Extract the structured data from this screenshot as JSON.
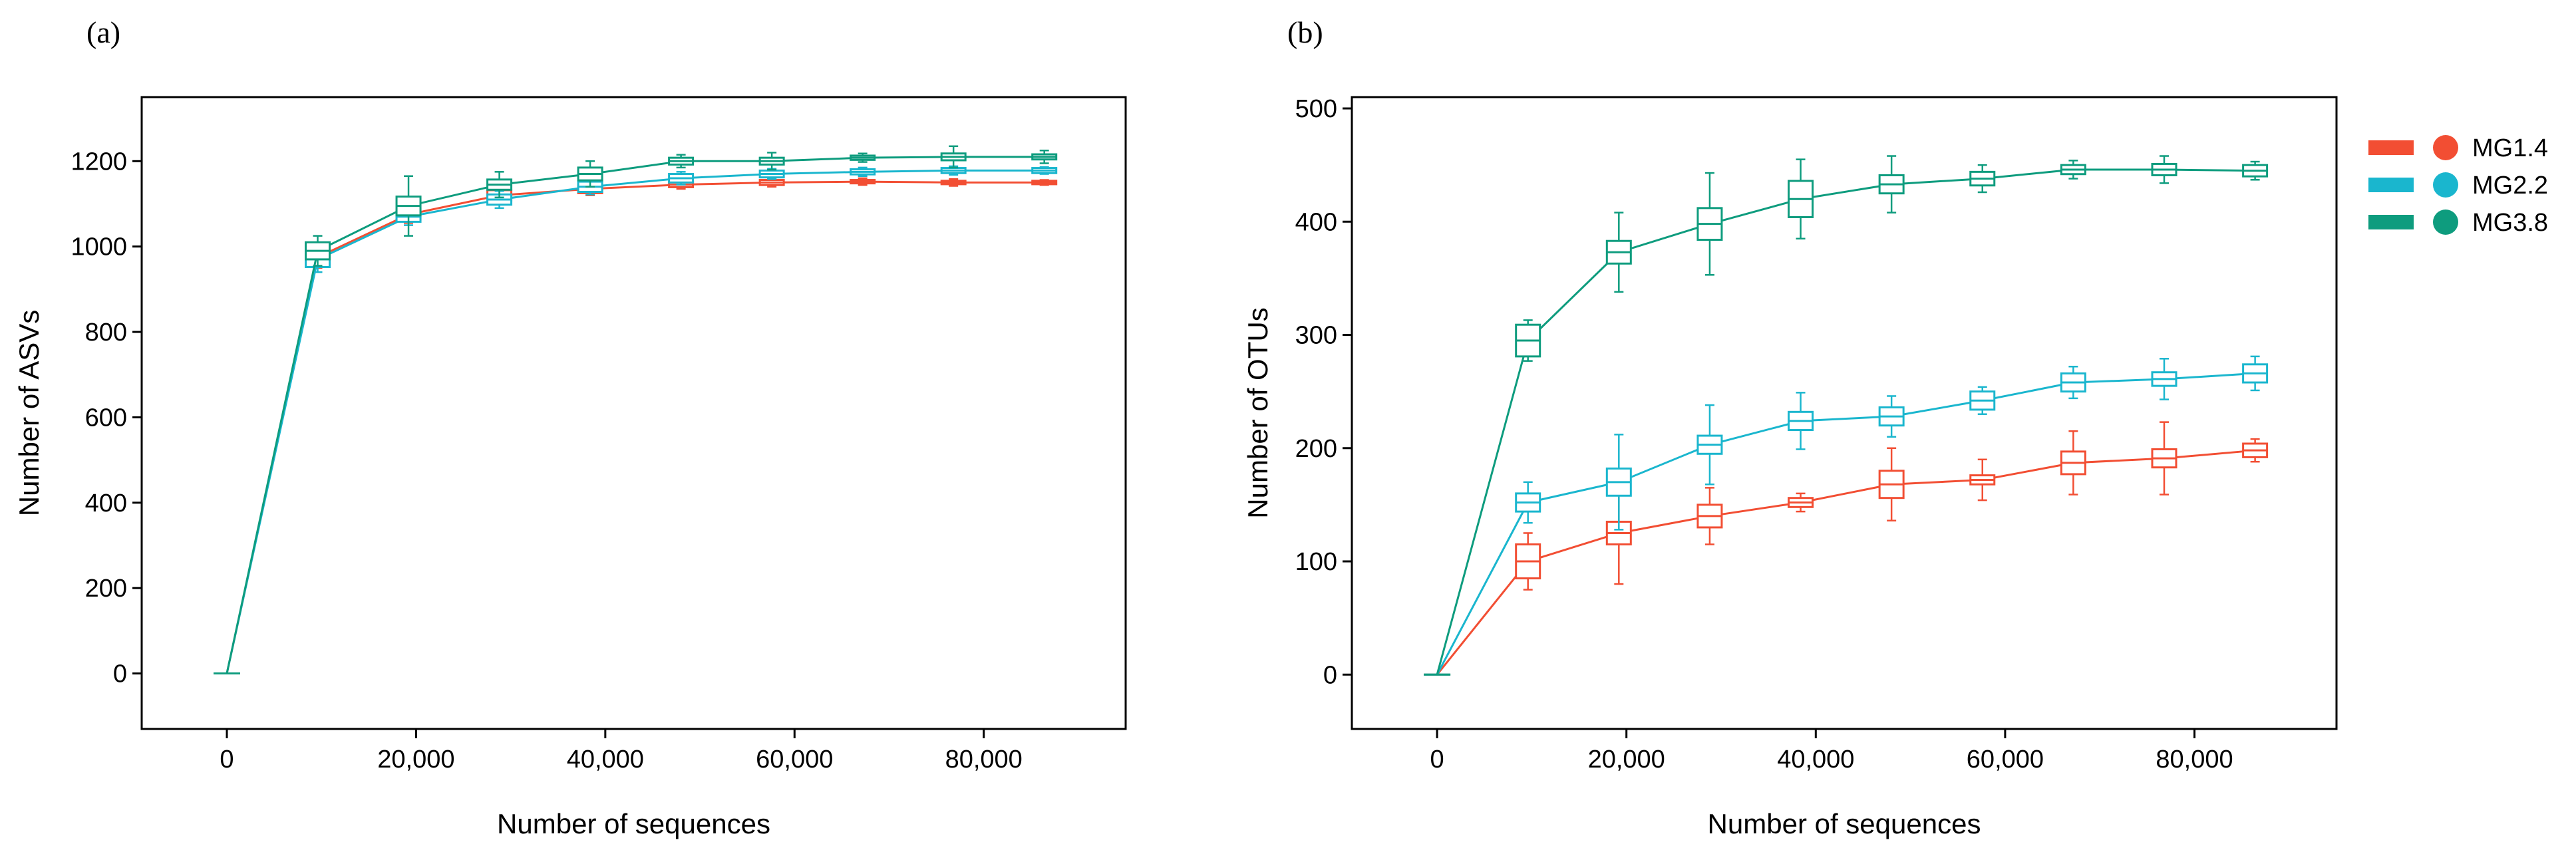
{
  "chart_data": [
    {
      "panel": "(a)",
      "type": "line",
      "subtype": "rarefaction curves with box plots",
      "xlabel": "Number of sequences",
      "ylabel": "Number of ASVs",
      "xlim": [
        -9000,
        95000
      ],
      "ylim": [
        -130,
        1350
      ],
      "xticks": [
        0,
        20000,
        40000,
        60000,
        80000
      ],
      "xtick_labels": [
        "0",
        "20,000",
        "40,000",
        "60,000",
        "80,000"
      ],
      "yticks": [
        0,
        200,
        400,
        600,
        800,
        1000,
        1200
      ],
      "ytick_labels": [
        "0",
        "200",
        "400",
        "600",
        "800",
        "1000",
        "1200"
      ],
      "x": [
        0,
        9600,
        19200,
        28800,
        38400,
        48000,
        57600,
        67200,
        76800,
        86400
      ],
      "series": [
        {
          "name": "MG1.4",
          "color": "#F24E33",
          "values": [
            0,
            975,
            1075,
            1120,
            1135,
            1145,
            1150,
            1152,
            1150,
            1150
          ],
          "box_halfrange": [
            0,
            15,
            12,
            12,
            10,
            6,
            6,
            4,
            4,
            4
          ],
          "whisker_halfrange": [
            0,
            25,
            20,
            20,
            15,
            10,
            10,
            8,
            8,
            6
          ]
        },
        {
          "name": "MG2.2",
          "color": "#1AB6CE",
          "values": [
            0,
            970,
            1070,
            1110,
            1140,
            1160,
            1170,
            1175,
            1178,
            1178
          ],
          "box_halfrange": [
            0,
            18,
            12,
            12,
            12,
            10,
            8,
            6,
            6,
            6
          ],
          "whisker_halfrange": [
            0,
            30,
            20,
            20,
            18,
            15,
            12,
            10,
            10,
            8
          ]
        },
        {
          "name": "MG3.8",
          "color": "#0E9C7E",
          "values": [
            0,
            990,
            1095,
            1145,
            1170,
            1200,
            1200,
            1208,
            1210,
            1210
          ],
          "box_halfrange": [
            0,
            20,
            22,
            12,
            15,
            8,
            8,
            5,
            8,
            6
          ],
          "whisker_halfrange": [
            0,
            35,
            70,
            30,
            30,
            15,
            20,
            10,
            25,
            15
          ]
        }
      ]
    },
    {
      "panel": "(b)",
      "type": "line",
      "subtype": "rarefaction curves with box plots",
      "xlabel": "Number of sequences",
      "ylabel": "Number of OTUs",
      "xlim": [
        -9000,
        95000
      ],
      "ylim": [
        -48,
        510
      ],
      "xticks": [
        0,
        20000,
        40000,
        60000,
        80000
      ],
      "xtick_labels": [
        "0",
        "20,000",
        "40,000",
        "60,000",
        "80,000"
      ],
      "yticks": [
        0,
        100,
        200,
        300,
        400,
        500
      ],
      "ytick_labels": [
        "0",
        "100",
        "200",
        "300",
        "400",
        "500"
      ],
      "x": [
        0,
        9600,
        19200,
        28800,
        38400,
        48000,
        57600,
        67200,
        76800,
        86400
      ],
      "series": [
        {
          "name": "MG1.4",
          "color": "#F24E33",
          "values": [
            0,
            100,
            125,
            140,
            152,
            168,
            172,
            187,
            191,
            198
          ],
          "box_halfrange": [
            0,
            15,
            10,
            10,
            4,
            12,
            4,
            10,
            8,
            6
          ],
          "whisker_halfrange": [
            0,
            25,
            45,
            25,
            8,
            32,
            18,
            28,
            32,
            10
          ]
        },
        {
          "name": "MG2.2",
          "color": "#1AB6CE",
          "values": [
            0,
            152,
            170,
            203,
            224,
            228,
            242,
            258,
            261,
            266
          ],
          "box_halfrange": [
            0,
            8,
            12,
            8,
            8,
            8,
            8,
            8,
            6,
            8
          ],
          "whisker_halfrange": [
            0,
            18,
            42,
            35,
            25,
            18,
            12,
            14,
            18,
            15
          ]
        },
        {
          "name": "MG3.8",
          "color": "#0E9C7E",
          "values": [
            0,
            295,
            373,
            398,
            420,
            433,
            438,
            446,
            446,
            445
          ],
          "box_halfrange": [
            0,
            14,
            10,
            14,
            16,
            8,
            6,
            4,
            5,
            5
          ],
          "whisker_halfrange": [
            0,
            18,
            35,
            45,
            35,
            25,
            12,
            8,
            12,
            8
          ]
        }
      ],
      "legend": {
        "position": "right",
        "entries": [
          "MG1.4",
          "MG2.2",
          "MG3.8"
        ]
      }
    }
  ]
}
